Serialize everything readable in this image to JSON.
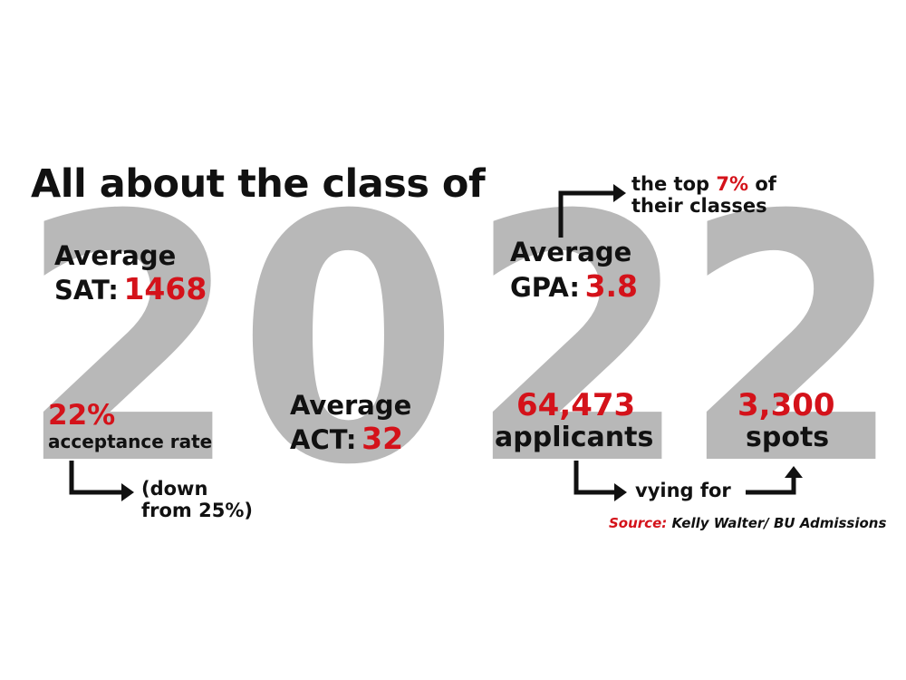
{
  "title": "All about the class of",
  "big_year": "2022",
  "colors": {
    "accent": "#d4121a",
    "background_number": "#b8b8b8",
    "text": "#111111"
  },
  "sat": {
    "label": "Average",
    "key": "SAT:",
    "value": "1468"
  },
  "acceptance": {
    "value": "22%",
    "label": "acceptance rate",
    "note_line1": "(down",
    "note_line2": "from 25%)"
  },
  "act": {
    "label": "Average",
    "key": "ACT:",
    "value": "32"
  },
  "gpa": {
    "label": "Average",
    "key": "GPA:",
    "value": "3.8",
    "note_pre": "the top",
    "note_value": "7%",
    "note_post": "of",
    "note_line2": "their classes"
  },
  "applicants": {
    "value": "64,473",
    "label": "applicants",
    "connector": "vying for"
  },
  "spots": {
    "value": "3,300",
    "label": "spots"
  },
  "source": {
    "label": "Source:",
    "text": "Kelly Walter/ BU Admissions"
  }
}
